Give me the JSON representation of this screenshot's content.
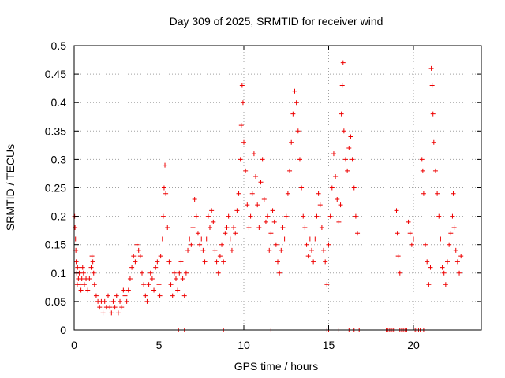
{
  "chart_data": {
    "type": "scatter",
    "title": "Day 309 of 2025, SRMTID for receiver wind",
    "xlabel": "GPS time / hours",
    "ylabel": "SRMTID / TECUs",
    "xlim": [
      0,
      24
    ],
    "ylim": [
      0,
      0.5
    ],
    "xticks": [
      0,
      5,
      10,
      15,
      20
    ],
    "yticks": [
      0,
      0.05,
      0.1,
      0.15,
      0.2,
      0.25,
      0.3,
      0.35,
      0.4,
      0.45,
      0.5
    ],
    "xtick_labels": [
      "0",
      "5",
      "10",
      "15",
      "20"
    ],
    "ytick_labels": [
      "0",
      "0.05",
      "0.1",
      "0.15",
      "0.2",
      "0.25",
      "0.3",
      "0.35",
      "0.4",
      "0.45",
      "0.5"
    ],
    "grid": true,
    "marker": "+",
    "color": "#ee0000",
    "series": [
      {
        "name": "SRMTID",
        "points": [
          [
            0.03,
            0.2
          ],
          [
            0.05,
            0.18
          ],
          [
            0.08,
            0.16
          ],
          [
            0.1,
            0.14
          ],
          [
            0.12,
            0.12
          ],
          [
            0.15,
            0.1
          ],
          [
            0.18,
            0.08
          ],
          [
            0.2,
            0.11
          ],
          [
            0.25,
            0.09
          ],
          [
            0.3,
            0.1
          ],
          [
            0.35,
            0.08
          ],
          [
            0.4,
            0.07
          ],
          [
            0.45,
            0.09
          ],
          [
            0.5,
            0.11
          ],
          [
            0.55,
            0.1
          ],
          [
            0.6,
            0.08
          ],
          [
            0.7,
            0.09
          ],
          [
            0.8,
            0.07
          ],
          [
            0.9,
            0.09
          ],
          [
            1.0,
            0.11
          ],
          [
            1.05,
            0.13
          ],
          [
            1.1,
            0.12
          ],
          [
            1.15,
            0.1
          ],
          [
            1.2,
            0.08
          ],
          [
            1.3,
            0.06
          ],
          [
            1.4,
            0.05
          ],
          [
            1.5,
            0.04
          ],
          [
            1.6,
            0.05
          ],
          [
            1.7,
            0.03
          ],
          [
            1.8,
            0.05
          ],
          [
            1.9,
            0.04
          ],
          [
            2.0,
            0.06
          ],
          [
            2.1,
            0.04
          ],
          [
            2.2,
            0.03
          ],
          [
            2.3,
            0.05
          ],
          [
            2.4,
            0.04
          ],
          [
            2.5,
            0.06
          ],
          [
            2.6,
            0.03
          ],
          [
            2.7,
            0.05
          ],
          [
            2.8,
            0.04
          ],
          [
            2.9,
            0.07
          ],
          [
            3.0,
            0.06
          ],
          [
            3.1,
            0.05
          ],
          [
            3.2,
            0.07
          ],
          [
            3.3,
            0.09
          ],
          [
            3.4,
            0.11
          ],
          [
            3.5,
            0.13
          ],
          [
            3.6,
            0.12
          ],
          [
            3.7,
            0.15
          ],
          [
            3.8,
            0.14
          ],
          [
            3.9,
            0.13
          ],
          [
            4.0,
            0.1
          ],
          [
            4.1,
            0.08
          ],
          [
            4.2,
            0.06
          ],
          [
            4.3,
            0.05
          ],
          [
            4.4,
            0.08
          ],
          [
            4.5,
            0.1
          ],
          [
            4.6,
            0.09
          ],
          [
            4.7,
            0.07
          ],
          [
            4.8,
            0.11
          ],
          [
            4.9,
            0.12
          ],
          [
            5.0,
            0.08
          ],
          [
            5.05,
            0.06
          ],
          [
            5.1,
            0.13
          ],
          [
            5.2,
            0.16
          ],
          [
            5.25,
            0.2
          ],
          [
            5.3,
            0.25
          ],
          [
            5.35,
            0.29
          ],
          [
            5.4,
            0.24
          ],
          [
            5.5,
            0.18
          ],
          [
            5.6,
            0.12
          ],
          [
            5.7,
            0.08
          ],
          [
            5.8,
            0.06
          ],
          [
            5.9,
            0.1
          ],
          [
            6.0,
            0.09
          ],
          [
            6.1,
            0.07
          ],
          [
            6.2,
            0.1
          ],
          [
            6.3,
            0.12
          ],
          [
            6.4,
            0.09
          ],
          [
            6.5,
            0.06
          ],
          [
            6.6,
            0.1
          ],
          [
            6.7,
            0.14
          ],
          [
            6.8,
            0.16
          ],
          [
            6.9,
            0.15
          ],
          [
            7.0,
            0.18
          ],
          [
            7.1,
            0.23
          ],
          [
            7.2,
            0.2
          ],
          [
            7.3,
            0.17
          ],
          [
            7.4,
            0.15
          ],
          [
            7.5,
            0.16
          ],
          [
            7.6,
            0.14
          ],
          [
            7.7,
            0.12
          ],
          [
            7.8,
            0.16
          ],
          [
            7.9,
            0.2
          ],
          [
            8.0,
            0.18
          ],
          [
            8.1,
            0.21
          ],
          [
            8.2,
            0.19
          ],
          [
            8.3,
            0.14
          ],
          [
            8.4,
            0.12
          ],
          [
            8.5,
            0.1
          ],
          [
            8.6,
            0.13
          ],
          [
            8.7,
            0.15
          ],
          [
            8.8,
            0.12
          ],
          [
            8.9,
            0.17
          ],
          [
            9.0,
            0.18
          ],
          [
            9.1,
            0.2
          ],
          [
            9.2,
            0.16
          ],
          [
            9.3,
            0.14
          ],
          [
            9.4,
            0.18
          ],
          [
            9.5,
            0.17
          ],
          [
            9.6,
            0.21
          ],
          [
            9.7,
            0.24
          ],
          [
            9.8,
            0.3
          ],
          [
            9.85,
            0.36
          ],
          [
            9.9,
            0.43
          ],
          [
            9.95,
            0.4
          ],
          [
            10.0,
            0.33
          ],
          [
            10.1,
            0.28
          ],
          [
            10.2,
            0.22
          ],
          [
            10.3,
            0.18
          ],
          [
            10.4,
            0.2
          ],
          [
            10.5,
            0.24
          ],
          [
            10.6,
            0.31
          ],
          [
            10.7,
            0.27
          ],
          [
            10.8,
            0.22
          ],
          [
            10.9,
            0.18
          ],
          [
            11.0,
            0.26
          ],
          [
            11.1,
            0.3
          ],
          [
            11.2,
            0.23
          ],
          [
            11.3,
            0.19
          ],
          [
            11.4,
            0.2
          ],
          [
            11.5,
            0.14
          ],
          [
            11.6,
            0.17
          ],
          [
            11.7,
            0.21
          ],
          [
            11.8,
            0.19
          ],
          [
            11.9,
            0.15
          ],
          [
            12.0,
            0.12
          ],
          [
            12.1,
            0.1
          ],
          [
            12.2,
            0.14
          ],
          [
            12.3,
            0.18
          ],
          [
            12.4,
            0.16
          ],
          [
            12.5,
            0.2
          ],
          [
            12.6,
            0.24
          ],
          [
            12.7,
            0.28
          ],
          [
            12.8,
            0.33
          ],
          [
            12.9,
            0.38
          ],
          [
            13.0,
            0.42
          ],
          [
            13.1,
            0.4
          ],
          [
            13.2,
            0.35
          ],
          [
            13.3,
            0.3
          ],
          [
            13.4,
            0.25
          ],
          [
            13.5,
            0.2
          ],
          [
            13.6,
            0.18
          ],
          [
            13.7,
            0.15
          ],
          [
            13.8,
            0.13
          ],
          [
            13.9,
            0.16
          ],
          [
            14.0,
            0.14
          ],
          [
            14.1,
            0.12
          ],
          [
            14.2,
            0.16
          ],
          [
            14.3,
            0.2
          ],
          [
            14.4,
            0.24
          ],
          [
            14.5,
            0.22
          ],
          [
            14.6,
            0.18
          ],
          [
            14.7,
            0.14
          ],
          [
            14.8,
            0.12
          ],
          [
            14.9,
            0.08
          ],
          [
            15.0,
            0.15
          ],
          [
            15.1,
            0.2
          ],
          [
            15.2,
            0.25
          ],
          [
            15.3,
            0.31
          ],
          [
            15.4,
            0.27
          ],
          [
            15.5,
            0.23
          ],
          [
            15.6,
            0.19
          ],
          [
            15.7,
            0.22
          ],
          [
            15.75,
            0.38
          ],
          [
            15.8,
            0.43
          ],
          [
            15.85,
            0.47
          ],
          [
            15.9,
            0.35
          ],
          [
            16.0,
            0.3
          ],
          [
            16.1,
            0.28
          ],
          [
            16.2,
            0.32
          ],
          [
            16.3,
            0.34
          ],
          [
            16.4,
            0.3
          ],
          [
            16.5,
            0.25
          ],
          [
            16.6,
            0.2
          ],
          [
            16.7,
            0.17
          ],
          [
            19.0,
            0.21
          ],
          [
            19.05,
            0.17
          ],
          [
            19.1,
            0.13
          ],
          [
            19.2,
            0.1
          ],
          [
            19.7,
            0.19
          ],
          [
            19.8,
            0.17
          ],
          [
            19.9,
            0.15
          ],
          [
            20.0,
            0.16
          ],
          [
            20.5,
            0.3
          ],
          [
            20.55,
            0.28
          ],
          [
            20.6,
            0.24
          ],
          [
            20.7,
            0.15
          ],
          [
            20.8,
            0.12
          ],
          [
            20.9,
            0.08
          ],
          [
            21.0,
            0.11
          ],
          [
            21.05,
            0.46
          ],
          [
            21.1,
            0.43
          ],
          [
            21.15,
            0.38
          ],
          [
            21.2,
            0.33
          ],
          [
            21.3,
            0.28
          ],
          [
            21.4,
            0.24
          ],
          [
            21.5,
            0.2
          ],
          [
            21.6,
            0.16
          ],
          [
            21.7,
            0.11
          ],
          [
            21.8,
            0.1
          ],
          [
            21.9,
            0.08
          ],
          [
            22.0,
            0.12
          ],
          [
            22.1,
            0.15
          ],
          [
            22.2,
            0.17
          ],
          [
            22.3,
            0.2
          ],
          [
            22.35,
            0.24
          ],
          [
            22.4,
            0.18
          ],
          [
            22.5,
            0.14
          ],
          [
            22.6,
            0.12
          ],
          [
            22.7,
            0.1
          ],
          [
            22.8,
            0.13
          ],
          [
            6.15,
            0
          ],
          [
            6.5,
            0
          ],
          [
            8.8,
            0
          ],
          [
            11.6,
            0
          ],
          [
            14.9,
            0
          ],
          [
            15.0,
            0
          ],
          [
            15.6,
            0
          ],
          [
            16.2,
            0
          ],
          [
            16.5,
            0
          ],
          [
            16.8,
            0
          ],
          [
            18.4,
            0
          ],
          [
            18.5,
            0
          ],
          [
            18.6,
            0
          ],
          [
            18.7,
            0
          ],
          [
            18.8,
            0
          ],
          [
            18.9,
            0
          ],
          [
            19.2,
            0
          ],
          [
            19.3,
            0
          ],
          [
            19.4,
            0
          ],
          [
            19.5,
            0
          ],
          [
            19.6,
            0
          ],
          [
            20.1,
            0
          ],
          [
            20.2,
            0
          ],
          [
            20.3,
            0
          ],
          [
            20.4,
            0
          ],
          [
            20.6,
            0
          ]
        ]
      }
    ]
  }
}
